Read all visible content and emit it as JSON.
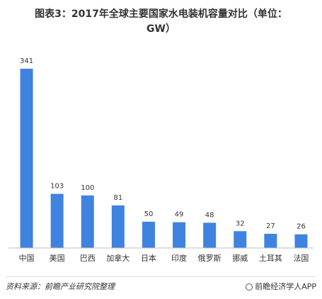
{
  "chart_data": {
    "type": "bar",
    "title_line1": "图表3：2017年全球主要国家水电装机容量对比（单位：",
    "title_line2": "GW）",
    "categories": [
      "中国",
      "美国",
      "巴西",
      "加拿大",
      "日本",
      "印度",
      "俄罗斯",
      "挪威",
      "土耳其",
      "法国"
    ],
    "values": [
      341,
      103,
      100,
      81,
      50,
      49,
      48,
      32,
      27,
      26
    ],
    "ylim": [
      0,
      341
    ],
    "bar_color": "#3f83e0",
    "grid": false,
    "legend": false
  },
  "footer": {
    "source": "资料来源：前瞻产业研究院整理",
    "brand": "前瞻经济学人APP"
  }
}
